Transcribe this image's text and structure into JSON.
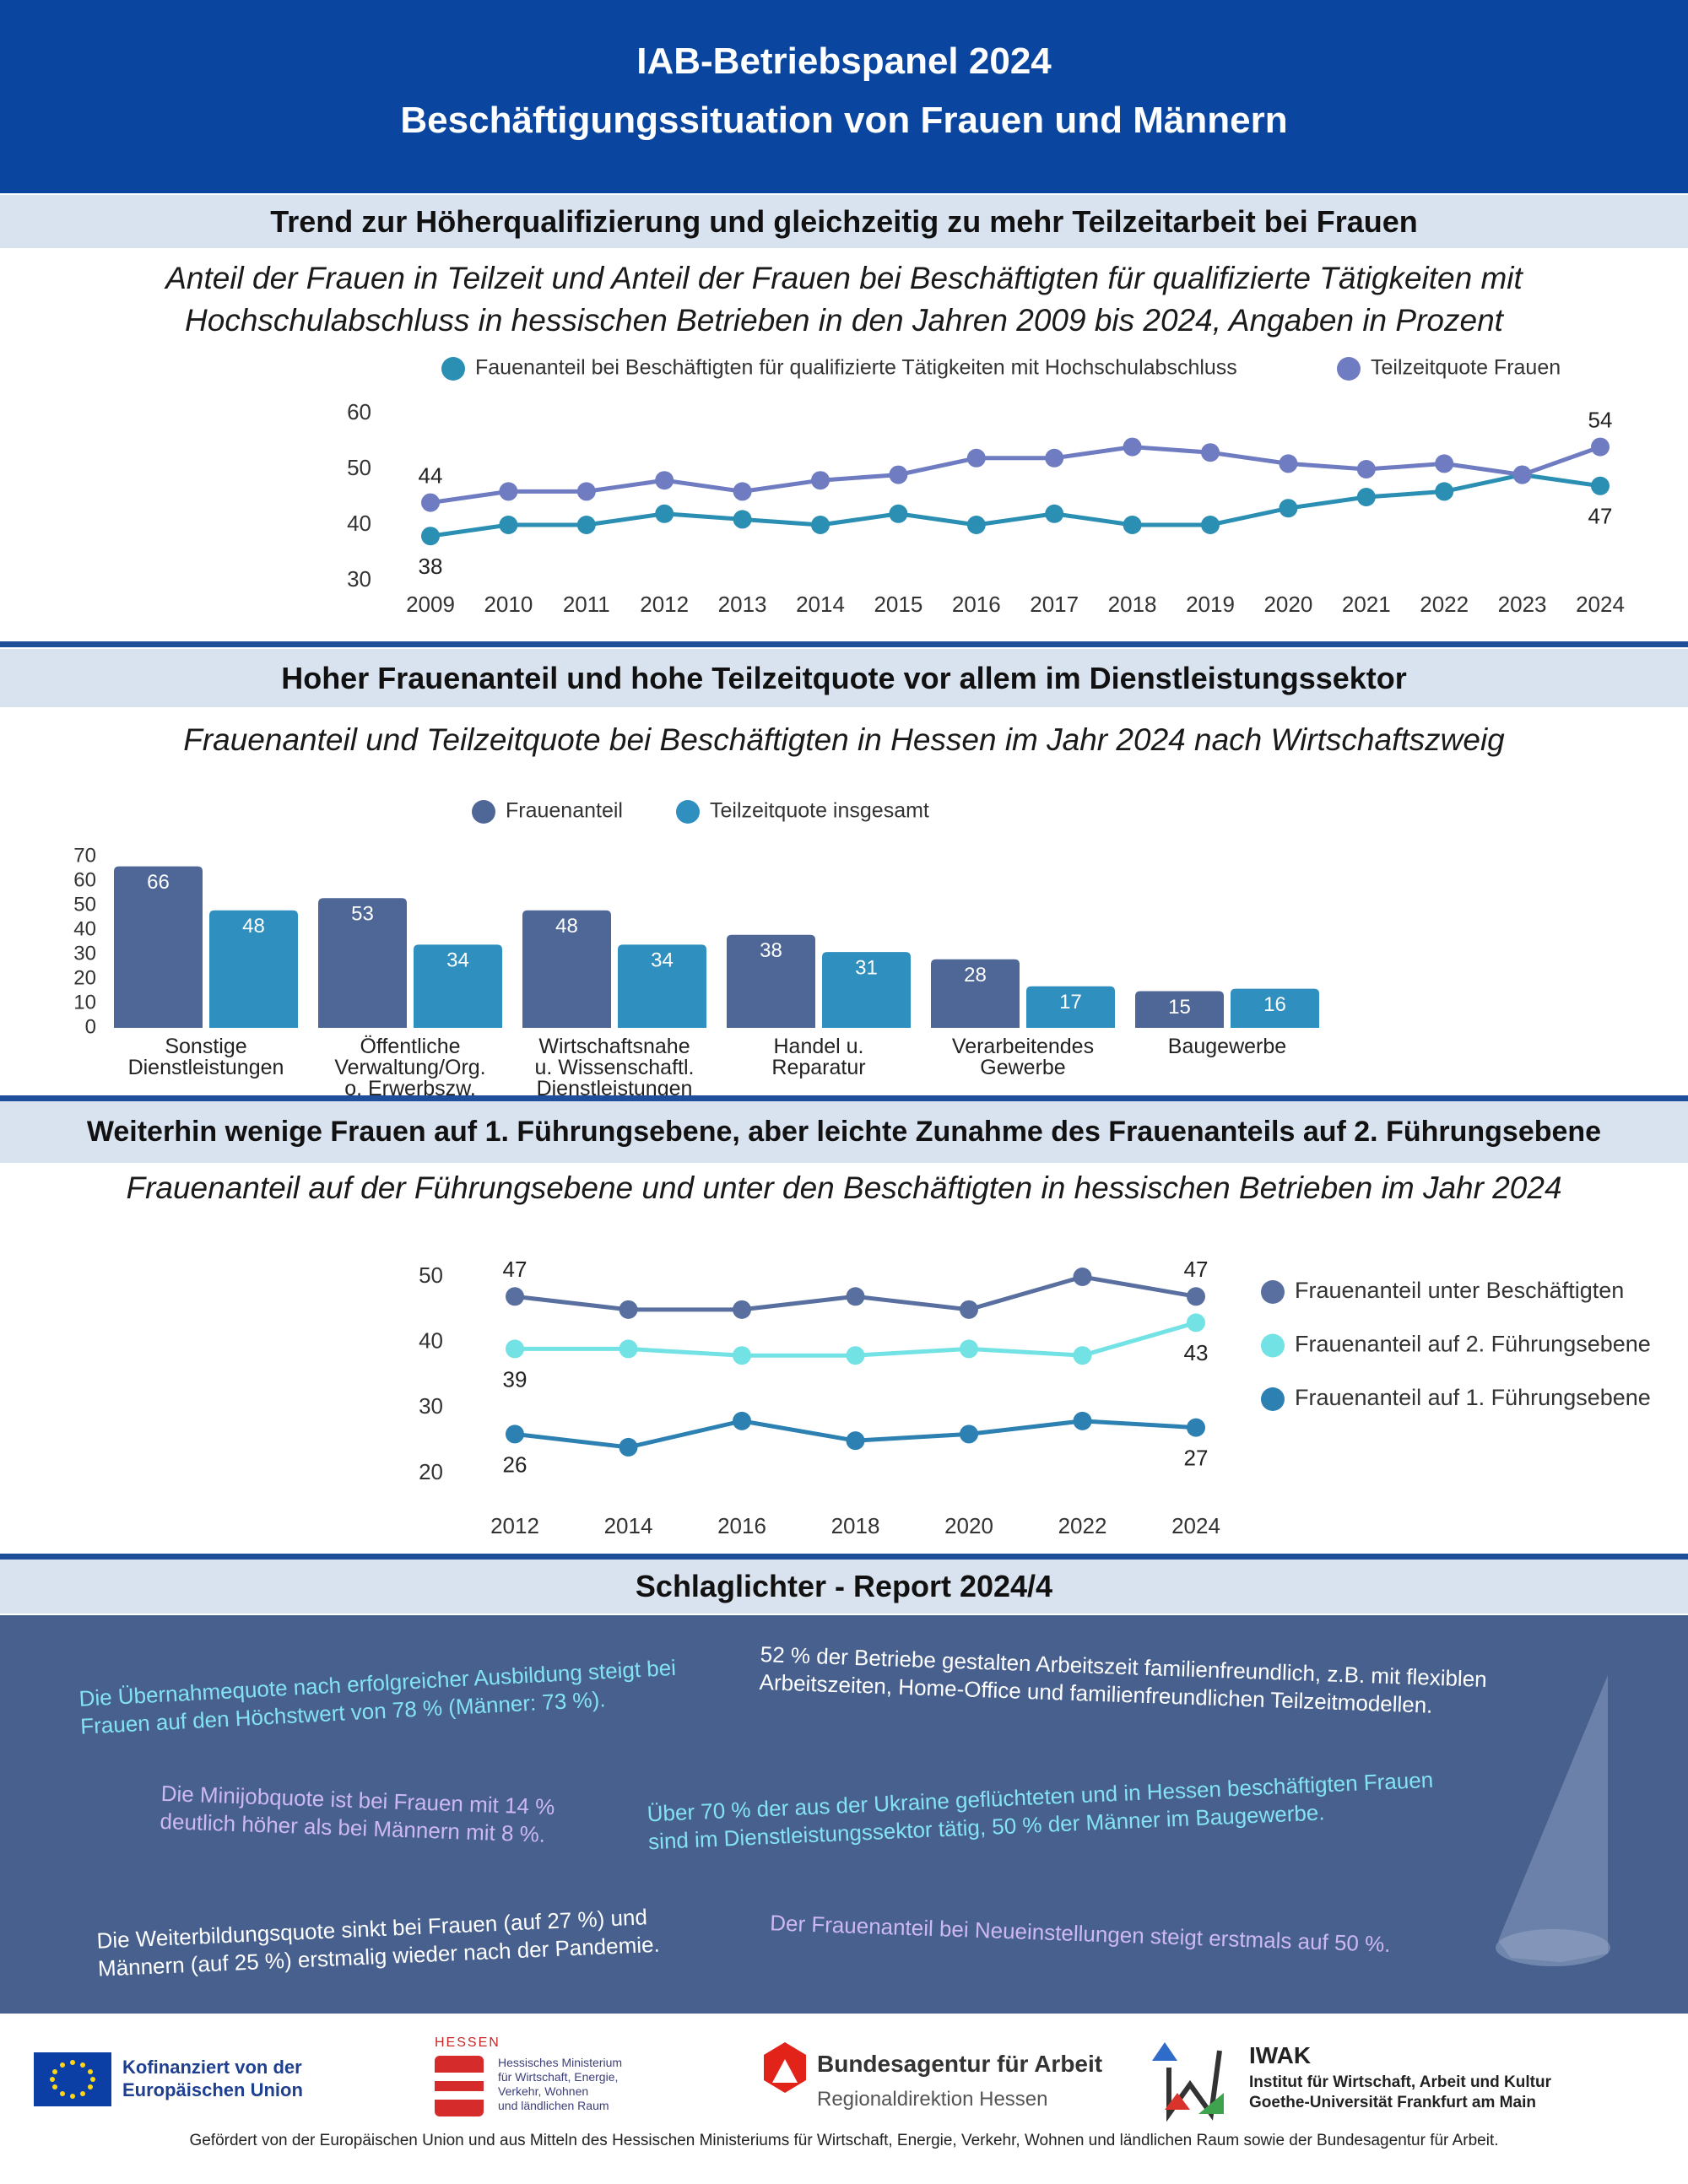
{
  "header": {
    "title": "IAB-Betriebspanel 2024",
    "subtitle": "Beschäftigungssituation von Frauen und Männern"
  },
  "sections": [
    {
      "heading": "Trend zur Höherqualifizierung und gleichzeitig zu mehr Teilzeitarbeit bei Frauen",
      "caption": "Anteil der Frauen in Teilzeit und Anteil der Frauen bei Beschäftigten für qualifizierte Tätigkeiten mit\nHochschulabschluss in hessischen Betrieben in den Jahren 2009 bis 2024, Angaben in Prozent"
    },
    {
      "heading": "Hoher Frauenanteil und hohe Teilzeitquote vor allem im Dienstleistungssektor",
      "caption": "Frauenanteil und Teilzeitquote bei Beschäftigten in Hessen im Jahr 2024 nach Wirtschaftszweig"
    },
    {
      "heading": "Weiterhin wenige Frauen auf 1. Führungsebene, aber leichte Zunahme des Frauenanteils auf 2. Führungsebene",
      "caption": "Frauenanteil auf der Führungsebene und unter den Beschäftigten in hessischen Betrieben im Jahr 2024"
    }
  ],
  "chart_data": [
    {
      "type": "line",
      "categories": [
        "2009",
        "2010",
        "2011",
        "2012",
        "2013",
        "2014",
        "2015",
        "2016",
        "2017",
        "2018",
        "2019",
        "2020",
        "2021",
        "2022",
        "2023",
        "2024"
      ],
      "series": [
        {
          "name": "Fauenanteil bei Beschäftigten für qualifizierte Tätigkeiten mit Hochschulabschluss",
          "color": "#2a8fb3",
          "values": [
            38,
            40,
            40,
            42,
            41,
            40,
            42,
            40,
            42,
            40,
            40,
            43,
            45,
            46,
            49,
            47
          ]
        },
        {
          "name": "Teilzeitquote Frauen",
          "color": "#6f7cc2",
          "values": [
            44,
            46,
            46,
            48,
            46,
            48,
            49,
            52,
            52,
            54,
            53,
            51,
            50,
            51,
            49,
            54
          ]
        }
      ],
      "ylim": [
        30,
        60
      ],
      "yticks": [
        30,
        40,
        50,
        60
      ]
    },
    {
      "type": "bar",
      "categories": [
        "Sonstige\nDienstleistungen",
        "Öffentliche\nVerwaltung/Org.\no. Erwerbszw.",
        "Wirtschaftsnahe\nu. Wissenschaftl.\nDienstleistungen",
        "Handel u.\nReparatur",
        "Verarbeitendes\nGewerbe",
        "Baugewerbe"
      ],
      "series": [
        {
          "name": "Frauenanteil",
          "color": "#4f6796",
          "values": [
            66,
            53,
            48,
            38,
            28,
            15
          ]
        },
        {
          "name": "Teilzeitquote insgesamt",
          "color": "#2f8fbf",
          "values": [
            48,
            34,
            34,
            31,
            17,
            16
          ]
        }
      ],
      "ylim": [
        0,
        70
      ],
      "yticks": [
        0,
        10,
        20,
        30,
        40,
        50,
        60,
        70
      ]
    },
    {
      "type": "line",
      "categories": [
        "2012",
        "2014",
        "2016",
        "2018",
        "2020",
        "2022",
        "2024"
      ],
      "series": [
        {
          "name": "Frauenanteil unter Beschäftigten",
          "color": "#586f9f",
          "values": [
            47,
            45,
            45,
            47,
            45,
            50,
            47
          ]
        },
        {
          "name": "Frauenanteil auf 2. Führungsebene",
          "color": "#72e2e4",
          "values": [
            39,
            39,
            38,
            38,
            39,
            38,
            43
          ]
        },
        {
          "name": "Frauenanteil auf 1. Führungsebene",
          "color": "#2c80b2",
          "values": [
            26,
            24,
            28,
            25,
            26,
            28,
            27
          ]
        }
      ],
      "ylim": [
        20,
        50
      ],
      "yticks": [
        20,
        30,
        40,
        50
      ]
    }
  ],
  "highlights": {
    "title": "Schlaglichter - Report 2024/4",
    "items": [
      {
        "text": "Die Übernahmequote nach erfolgreicher Ausbildung steigt bei Frauen auf den Höchstwert von 78 % (Männer: 73 %).",
        "color": "#84e3f2"
      },
      {
        "text": "52 % der Betriebe gestalten Arbeitszeit familienfreundlich, z.B. mit flexiblen Arbeitszeiten, Home-Office und familienfreundlichen Teilzeitmodellen.",
        "color": "#ffffff"
      },
      {
        "text": "Die Minijobquote ist bei Frauen mit 14 % deutlich höher als bei Männern mit 8 %.",
        "color": "#cdb8f2"
      },
      {
        "text": "Über 70 % der aus der Ukraine geflüchteten und in Hessen beschäftigten Frauen sind im Dienstleistungssektor tätig, 50 % der Männer im Baugewerbe.",
        "color": "#84e3f2"
      },
      {
        "text": "Die Weiterbildungsquote sinkt bei Frauen (auf 27 %) und Männern (auf 25 %) erstmalig wieder nach der Pandemie.",
        "color": "#ffffff"
      },
      {
        "text": "Der Frauenanteil bei Neueinstellungen steigt erstmals auf 50 %.",
        "color": "#cdb8f2"
      }
    ]
  },
  "footer": {
    "eu": "Kofinanziert von der\nEuropäischen Union",
    "hessen_label": "HESSEN",
    "hessen": "Hessisches Ministerium\nfür Wirtschaft, Energie,\nVerkehr, Wohnen\nund ländlichen Raum",
    "ba": "Bundesagentur für Arbeit",
    "ba_sub": "Regionaldirektion Hessen",
    "iwak": "IWAK",
    "iwak_sub": "Institut für Wirtschaft, Arbeit und Kultur\nGoethe-Universität Frankfurt am Main",
    "note": "Gefördert von der Europäischen Union und aus Mitteln des Hessischen Ministeriums für Wirtschaft, Energie, Verkehr, Wohnen und ländlichen Raum sowie der Bundesagentur für Arbeit."
  }
}
